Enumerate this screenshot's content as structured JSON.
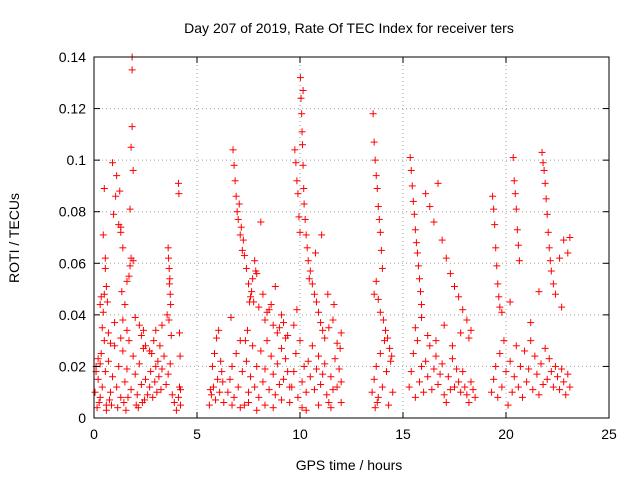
{
  "chart_data": {
    "type": "scatter",
    "title": "Day 207 of 2019, Rate Of TEC Index for receiver ters",
    "xlabel": "GPS time / hours",
    "ylabel": "ROTI / TECUs",
    "xlim": [
      0,
      25
    ],
    "ylim": [
      0,
      0.14
    ],
    "xticks": [
      0,
      5,
      10,
      15,
      20,
      25
    ],
    "xtick_labels": [
      "0",
      "5",
      "10",
      "15",
      "20",
      "25"
    ],
    "yticks": [
      0,
      0.02,
      0.04,
      0.06,
      0.08,
      0.1,
      0.12,
      0.14
    ],
    "ytick_labels": [
      "0",
      "0.02",
      "0.04",
      "0.06",
      "0.08",
      "0.1",
      "0.12",
      "0.14"
    ],
    "grid": true,
    "marker": "+",
    "color": "#ff0000",
    "series": [
      {
        "x": [
          0.05,
          0.1,
          0.2,
          0.3,
          0.35,
          0.4,
          0.5,
          0.55,
          0.6,
          0.7,
          0.8,
          0.9,
          1.0,
          1.1,
          1.2,
          1.3,
          1.4,
          1.5,
          1.6,
          1.7,
          1.8,
          1.9,
          2.0,
          2.1,
          2.2,
          2.3,
          2.4,
          2.5,
          0.45,
          0.5,
          0.55,
          0.6,
          0.65,
          0.9,
          1.1,
          1.25,
          1.3,
          1.4,
          1.5,
          1.75,
          1.8,
          1.85,
          1.85,
          1.85,
          1.9,
          1.9,
          0.95,
          1.05,
          0.4,
          0.45,
          0.5,
          0.55,
          1.7,
          1.75,
          1.8,
          1.35,
          1.4,
          2.2,
          2.3,
          2.4,
          2.5,
          1.2,
          1.3,
          0.3,
          0.35,
          1.6,
          2.0,
          0.15,
          0.25,
          0.6,
          0.75,
          0.85,
          1.15,
          1.45,
          1.55,
          1.65,
          2.05,
          2.15,
          2.35,
          2.45,
          2.6,
          0.7,
          0.8,
          1.0,
          1.3,
          1.6,
          2.7,
          0.1,
          0.2,
          0.3
        ],
        "y": [
          0.01,
          0.02,
          0.015,
          0.008,
          0.025,
          0.012,
          0.03,
          0.018,
          0.005,
          0.022,
          0.01,
          0.016,
          0.028,
          0.012,
          0.02,
          0.008,
          0.026,
          0.014,
          0.019,
          0.03,
          0.011,
          0.024,
          0.017,
          0.009,
          0.021,
          0.013,
          0.027,
          0.015,
          0.071,
          0.089,
          0.062,
          0.051,
          0.045,
          0.099,
          0.094,
          0.088,
          0.074,
          0.066,
          0.044,
          0.081,
          0.105,
          0.113,
          0.135,
          0.14,
          0.096,
          0.061,
          0.079,
          0.086,
          0.035,
          0.041,
          0.048,
          0.058,
          0.055,
          0.059,
          0.062,
          0.049,
          0.038,
          0.036,
          0.032,
          0.034,
          0.028,
          0.075,
          0.072,
          0.044,
          0.047,
          0.053,
          0.039,
          0.004,
          0.006,
          0.003,
          0.007,
          0.005,
          0.004,
          0.006,
          0.003,
          0.008,
          0.005,
          0.004,
          0.006,
          0.007,
          0.009,
          0.033,
          0.029,
          0.037,
          0.031,
          0.034,
          0.026,
          0.018,
          0.023,
          0.021
        ]
      },
      {
        "x": [
          2.7,
          2.75,
          2.8,
          2.85,
          2.9,
          2.95,
          3.0,
          3.05,
          3.1,
          3.15,
          3.2,
          3.25,
          3.3,
          3.4,
          3.5,
          3.6,
          3.7,
          3.8,
          3.9,
          4.0,
          4.1,
          4.15,
          4.2,
          3.6,
          3.62,
          3.65,
          3.68,
          3.7,
          3.72,
          3.66,
          3.64,
          4.1,
          4.12,
          4.15,
          4.18,
          4.2,
          3.0,
          3.3,
          3.55,
          3.75
        ],
        "y": [
          0.012,
          0.018,
          0.025,
          0.008,
          0.03,
          0.014,
          0.02,
          0.01,
          0.022,
          0.016,
          0.028,
          0.011,
          0.019,
          0.024,
          0.013,
          0.017,
          0.021,
          0.009,
          0.006,
          0.003,
          0.008,
          0.012,
          0.005,
          0.066,
          0.062,
          0.058,
          0.054,
          0.048,
          0.044,
          0.052,
          0.038,
          0.091,
          0.087,
          0.033,
          0.024,
          0.011,
          0.034,
          0.036,
          0.04,
          0.032
        ]
      },
      {
        "x": [
          5.6,
          5.7,
          5.8,
          5.9,
          6.0,
          6.1,
          6.2,
          6.3,
          5.75,
          5.85,
          5.95,
          6.05,
          6.15,
          5.65,
          6.25
        ],
        "y": [
          0.005,
          0.009,
          0.012,
          0.007,
          0.015,
          0.01,
          0.018,
          0.006,
          0.02,
          0.025,
          0.031,
          0.034,
          0.022,
          0.011,
          0.014
        ]
      },
      {
        "x": [
          6.5,
          6.6,
          6.7,
          6.8,
          6.9,
          7.0,
          7.1,
          7.2,
          7.3,
          7.4,
          7.5,
          7.6,
          7.7,
          7.8,
          7.9,
          8.0,
          8.1,
          8.2,
          8.3,
          8.4,
          8.5,
          8.6,
          8.7,
          8.8,
          8.9,
          9.0,
          9.1,
          9.2,
          9.3,
          9.4,
          9.5,
          6.75,
          6.8,
          6.85,
          6.9,
          6.95,
          7.0,
          7.05,
          7.1,
          7.15,
          7.2,
          7.25,
          7.3,
          7.4,
          7.5,
          7.6,
          7.7,
          7.8,
          7.9,
          8.1,
          8.2,
          8.4,
          8.6,
          8.8,
          9.0,
          9.2,
          9.4,
          6.65,
          7.55,
          7.65,
          7.85,
          8.0,
          8.3,
          8.5,
          8.7,
          8.9,
          9.1,
          9.3,
          7.35,
          7.45,
          7.75,
          6.7,
          7.1,
          7.5,
          7.9,
          8.3,
          8.7,
          9.1,
          9.5
        ],
        "y": [
          0.01,
          0.015,
          0.02,
          0.008,
          0.025,
          0.012,
          0.03,
          0.018,
          0.005,
          0.022,
          0.01,
          0.016,
          0.028,
          0.012,
          0.02,
          0.008,
          0.026,
          0.014,
          0.019,
          0.03,
          0.011,
          0.024,
          0.017,
          0.009,
          0.021,
          0.013,
          0.027,
          0.015,
          0.023,
          0.018,
          0.012,
          0.104,
          0.098,
          0.092,
          0.086,
          0.08,
          0.077,
          0.083,
          0.071,
          0.074,
          0.065,
          0.069,
          0.063,
          0.058,
          0.052,
          0.047,
          0.054,
          0.061,
          0.056,
          0.076,
          0.048,
          0.041,
          0.044,
          0.051,
          0.035,
          0.037,
          0.032,
          0.039,
          0.045,
          0.049,
          0.057,
          0.043,
          0.038,
          0.042,
          0.036,
          0.033,
          0.04,
          0.031,
          0.03,
          0.034,
          0.045,
          0.005,
          0.004,
          0.006,
          0.003,
          0.005,
          0.004,
          0.007,
          0.006
        ]
      },
      {
        "x": [
          9.6,
          9.7,
          9.8,
          9.9,
          10.0,
          10.1,
          10.2,
          10.3,
          10.4,
          10.5,
          10.6,
          10.7,
          10.8,
          10.9,
          11.0,
          11.1,
          11.2,
          11.3,
          11.4,
          11.5,
          11.6,
          11.7,
          11.8,
          11.9,
          12.0,
          9.75,
          9.8,
          9.85,
          9.9,
          9.95,
          10.0,
          10.02,
          10.05,
          10.08,
          10.1,
          10.12,
          10.15,
          10.18,
          10.2,
          10.25,
          10.3,
          10.35,
          10.4,
          10.5,
          10.6,
          10.7,
          10.8,
          10.9,
          11.0,
          11.1,
          11.2,
          11.4,
          11.6,
          11.8,
          12.0,
          9.7,
          9.85,
          10.15,
          10.45,
          10.75,
          11.05,
          11.35,
          11.65,
          11.95,
          10.1,
          10.3,
          10.9,
          11.5,
          12.0
        ],
        "y": [
          0.012,
          0.018,
          0.025,
          0.008,
          0.03,
          0.014,
          0.02,
          0.01,
          0.022,
          0.016,
          0.028,
          0.011,
          0.019,
          0.024,
          0.013,
          0.017,
          0.021,
          0.009,
          0.006,
          0.016,
          0.011,
          0.023,
          0.012,
          0.019,
          0.014,
          0.104,
          0.099,
          0.092,
          0.087,
          0.078,
          0.072,
          0.132,
          0.124,
          0.118,
          0.111,
          0.106,
          0.098,
          0.089,
          0.083,
          0.077,
          0.071,
          0.066,
          0.061,
          0.057,
          0.052,
          0.048,
          0.045,
          0.041,
          0.037,
          0.034,
          0.031,
          0.035,
          0.038,
          0.029,
          0.033,
          0.036,
          0.042,
          0.127,
          0.054,
          0.064,
          0.071,
          0.048,
          0.044,
          0.027,
          0.004,
          0.003,
          0.005,
          0.004,
          0.006
        ]
      },
      {
        "x": [
          13.5,
          13.6,
          13.7,
          13.8,
          13.9,
          14.0,
          14.1,
          14.2,
          14.3,
          14.4,
          14.5,
          13.55,
          13.6,
          13.65,
          13.7,
          13.75,
          13.8,
          13.85,
          13.9,
          13.95,
          14.0,
          13.6,
          13.7,
          13.8,
          13.9,
          14.05,
          14.15,
          14.25,
          14.35,
          14.45,
          13.65,
          13.75
        ],
        "y": [
          0.01,
          0.015,
          0.02,
          0.008,
          0.025,
          0.012,
          0.03,
          0.018,
          0.005,
          0.022,
          0.01,
          0.118,
          0.107,
          0.1,
          0.094,
          0.089,
          0.082,
          0.077,
          0.072,
          0.065,
          0.058,
          0.048,
          0.053,
          0.046,
          0.041,
          0.038,
          0.034,
          0.031,
          0.027,
          0.024,
          0.004,
          0.006
        ]
      },
      {
        "x": [
          15.3,
          15.4,
          15.5,
          15.6,
          15.7,
          15.8,
          15.9,
          16.0,
          16.1,
          16.2,
          16.3,
          16.4,
          16.5,
          16.6,
          16.7,
          16.8,
          16.9,
          17.0,
          17.1,
          17.2,
          17.3,
          17.4,
          17.5,
          17.6,
          17.7,
          17.8,
          17.9,
          18.0,
          18.1,
          18.2,
          18.3,
          18.4,
          18.5,
          15.35,
          15.4,
          15.45,
          15.5,
          15.55,
          15.6,
          15.65,
          15.7,
          15.75,
          15.8,
          15.85,
          15.9,
          16.1,
          16.3,
          16.5,
          16.7,
          16.9,
          17.1,
          17.3,
          17.5,
          17.7,
          17.9,
          18.1,
          18.3,
          15.6,
          15.9,
          16.2,
          16.6,
          17.0,
          17.4,
          17.8,
          18.2
        ],
        "y": [
          0.012,
          0.018,
          0.025,
          0.008,
          0.03,
          0.014,
          0.02,
          0.01,
          0.022,
          0.016,
          0.028,
          0.011,
          0.019,
          0.024,
          0.013,
          0.017,
          0.021,
          0.009,
          0.006,
          0.016,
          0.011,
          0.023,
          0.012,
          0.019,
          0.014,
          0.01,
          0.018,
          0.012,
          0.009,
          0.006,
          0.014,
          0.011,
          0.008,
          0.101,
          0.096,
          0.09,
          0.084,
          0.079,
          0.073,
          0.068,
          0.064,
          0.059,
          0.054,
          0.049,
          0.044,
          0.087,
          0.082,
          0.076,
          0.091,
          0.069,
          0.062,
          0.056,
          0.051,
          0.047,
          0.042,
          0.038,
          0.034,
          0.035,
          0.039,
          0.032,
          0.03,
          0.036,
          0.028,
          0.033,
          0.031
        ]
      },
      {
        "x": [
          19.3,
          19.4,
          19.5,
          19.6,
          19.7,
          19.8,
          19.9,
          20.0,
          20.1,
          20.2,
          20.3,
          20.4,
          20.5,
          20.6,
          20.7,
          20.8,
          20.9,
          21.0,
          21.1,
          21.2,
          21.3,
          21.4,
          21.5,
          21.6,
          21.7,
          21.8,
          21.9,
          22.0,
          22.1,
          22.2,
          22.3,
          22.4,
          22.5,
          22.6,
          22.7,
          22.8,
          22.9,
          23.0,
          23.1,
          19.35,
          19.4,
          19.45,
          19.5,
          19.55,
          19.6,
          19.65,
          19.7,
          20.35,
          20.4,
          20.45,
          20.5,
          20.55,
          20.6,
          20.65,
          21.75,
          21.8,
          21.85,
          21.9,
          21.95,
          22.0,
          22.05,
          22.1,
          22.15,
          22.2,
          22.3,
          22.4,
          22.6,
          22.8,
          23.0,
          23.1,
          19.8,
          20.2,
          21.2,
          21.6,
          22.7
        ],
        "y": [
          0.01,
          0.015,
          0.02,
          0.008,
          0.025,
          0.012,
          0.03,
          0.018,
          0.005,
          0.022,
          0.01,
          0.016,
          0.028,
          0.012,
          0.02,
          0.008,
          0.026,
          0.014,
          0.019,
          0.03,
          0.011,
          0.024,
          0.017,
          0.009,
          0.021,
          0.013,
          0.027,
          0.015,
          0.023,
          0.018,
          0.012,
          0.02,
          0.016,
          0.011,
          0.019,
          0.014,
          0.009,
          0.017,
          0.012,
          0.086,
          0.081,
          0.075,
          0.066,
          0.059,
          0.052,
          0.047,
          0.043,
          0.101,
          0.092,
          0.087,
          0.081,
          0.073,
          0.067,
          0.061,
          0.103,
          0.099,
          0.096,
          0.091,
          0.085,
          0.079,
          0.072,
          0.066,
          0.061,
          0.057,
          0.052,
          0.048,
          0.062,
          0.069,
          0.064,
          0.07,
          0.041,
          0.045,
          0.037,
          0.049,
          0.043
        ]
      }
    ]
  }
}
